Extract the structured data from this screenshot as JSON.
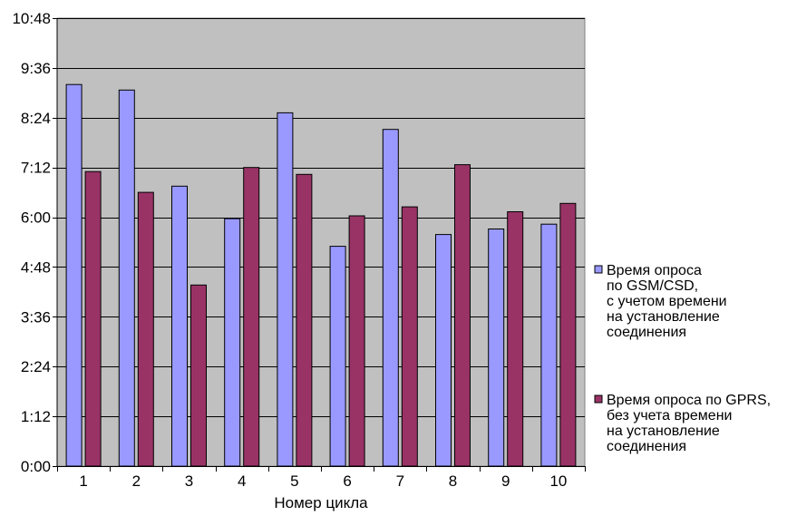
{
  "chart_data": {
    "type": "bar",
    "title": "",
    "xlabel": "Номер цикла",
    "ylabel": "",
    "categories": [
      "1",
      "2",
      "3",
      "4",
      "5",
      "6",
      "7",
      "8",
      "9",
      "10"
    ],
    "y_unit": "minutes (m:ss)",
    "ylim": [
      0,
      648
    ],
    "y_tick_values": [
      0,
      72,
      144,
      216,
      288,
      360,
      432,
      504,
      576,
      648
    ],
    "y_tick_labels": [
      "0:00",
      "1:12",
      "2:24",
      "3:36",
      "4:48",
      "6:00",
      "7:12",
      "8:24",
      "9:36",
      "10:48"
    ],
    "grid": true,
    "legend_position": "right",
    "plot_background": "#c0c0c0",
    "series": [
      {
        "name": "Время опроса по GSM/CSD, с учетом времени на установление соединения",
        "legend_lines": [
          "Время опроса",
          "по GSM/CSD,",
          "с учетом времени",
          "на установление",
          "соединения"
        ],
        "color": "#9999ff",
        "values": [
          552,
          544,
          405,
          358,
          511,
          318,
          487,
          335,
          343,
          350
        ]
      },
      {
        "name": "Время опроса по GPRS, без учета времени на установление соединения",
        "legend_lines": [
          "Время опроса по GPRS,",
          "без учета времени",
          "на установление",
          "соединения"
        ],
        "color": "#993366",
        "values": [
          426,
          396,
          262,
          432,
          422,
          362,
          375,
          436,
          368,
          380
        ]
      }
    ]
  }
}
